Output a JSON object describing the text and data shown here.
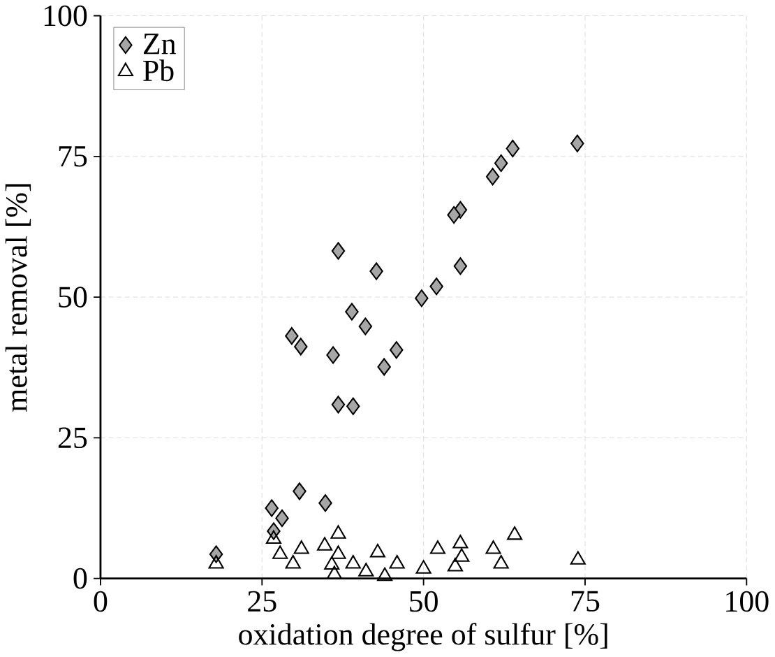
{
  "chart_data": {
    "type": "scatter",
    "xlabel": "oxidation degree of sulfur [%]",
    "ylabel": "metal removal [%]",
    "xlim": [
      0,
      100
    ],
    "ylim": [
      0,
      100
    ],
    "xticks": [
      0,
      25,
      50,
      75,
      100
    ],
    "yticks": [
      0,
      25,
      50,
      75,
      100
    ],
    "grid": true,
    "legend": "top left",
    "series": [
      {
        "name": "Zn",
        "color": "#a6a6a6",
        "marker": "diamond",
        "x": [
          36.8,
          42.7,
          49.7,
          38.9,
          41.0,
          29.6,
          31.0,
          36.0,
          45.8,
          43.9,
          36.8,
          39.1,
          30.8,
          34.8,
          26.5,
          28.1,
          73.8,
          63.8,
          62.0,
          60.7,
          55.7,
          54.7,
          55.7,
          52.0,
          17.9,
          26.8
        ],
        "values": [
          58.2,
          54.6,
          49.8,
          47.4,
          44.8,
          43.1,
          41.2,
          39.7,
          40.6,
          37.6,
          30.9,
          30.6,
          15.5,
          13.4,
          12.5,
          10.7,
          77.3,
          76.4,
          73.8,
          71.4,
          65.5,
          64.6,
          55.5,
          51.9,
          4.3,
          8.4
        ]
      },
      {
        "name": "Pb",
        "color": "#000000",
        "marker": "triangle",
        "x": [
          17.9,
          26.8,
          27.8,
          29.8,
          31.1,
          34.7,
          36.8,
          36.8,
          36.2,
          35.8,
          39.1,
          41.1,
          42.9,
          44.0,
          45.9,
          50.0,
          52.2,
          54.9,
          55.7,
          55.9,
          60.8,
          62.0,
          64.1,
          73.9
        ],
        "values": [
          2.6,
          7.0,
          4.3,
          2.6,
          5.2,
          5.8,
          7.9,
          4.3,
          0.7,
          2.4,
          2.6,
          1.2,
          4.6,
          0.4,
          2.6,
          1.7,
          5.2,
          2.1,
          6.2,
          3.8,
          5.2,
          2.6,
          7.7,
          3.3
        ]
      }
    ]
  }
}
